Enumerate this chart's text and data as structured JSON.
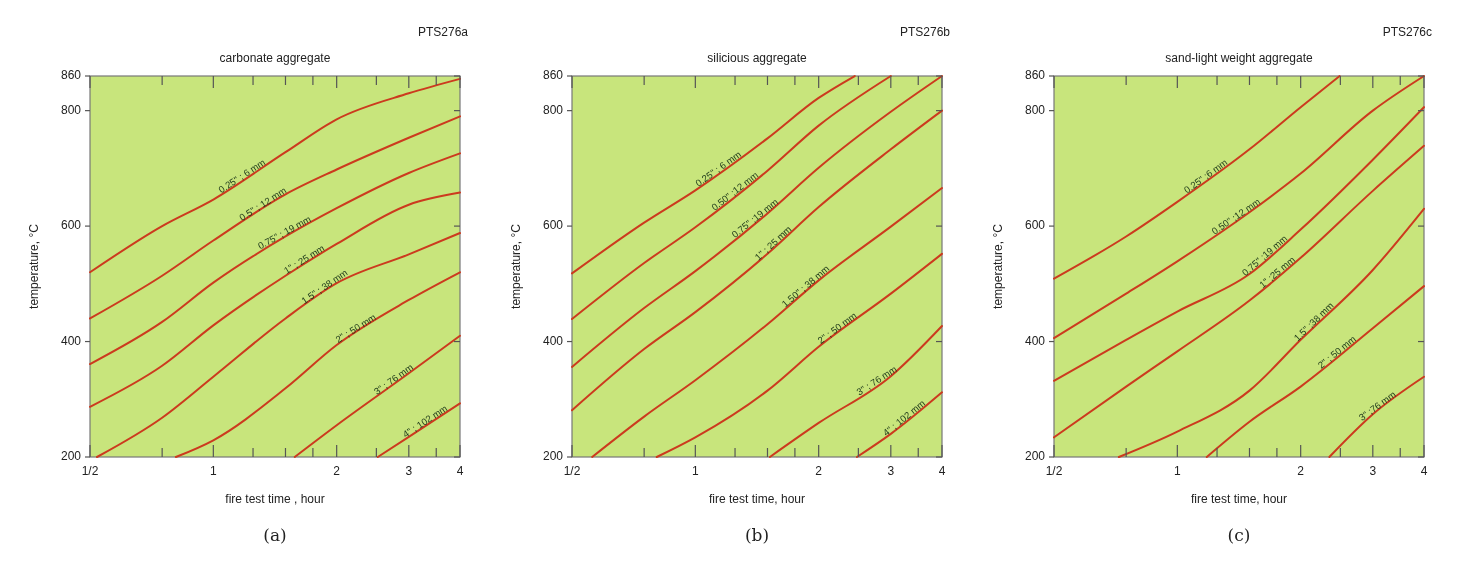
{
  "chart_data": [
    {
      "type": "line",
      "title": "carbonate aggregate",
      "xlabel": "fire test time ,  hour",
      "ylabel": "temperature, °C",
      "log": "x",
      "xlim": [
        0.5,
        4
      ],
      "ylim": [
        200,
        860
      ],
      "xticks": [
        {
          "value": 0.5,
          "label": "1/2"
        },
        {
          "value": 0.75,
          "label": null
        },
        1,
        {
          "value": 1.25,
          "label": null
        },
        {
          "value": 1.5,
          "label": null
        },
        {
          "value": 1.75,
          "label": null
        },
        2,
        {
          "value": 2.5,
          "label": null
        },
        3,
        {
          "value": 3.5,
          "label": null
        },
        4
      ],
      "yticks": [
        200,
        400,
        600,
        800,
        860
      ],
      "annotations": [
        "PTS276a",
        "(a)"
      ],
      "series": [
        {
          "name": "0.25\" ; 6 mm",
          "color": "#cc3a1e",
          "x": [
            0.5,
            0.75,
            1,
            1.5,
            2,
            3,
            4
          ],
          "values": [
            520,
            600,
            646,
            728,
            785,
            830,
            855
          ]
        },
        {
          "name": "0.5\" ; 12 mm",
          "color": "#cc3a1e",
          "x": [
            0.5,
            0.75,
            1,
            1.5,
            2,
            3,
            4
          ],
          "values": [
            440,
            514,
            575,
            655,
            698,
            753,
            790
          ]
        },
        {
          "name": "0.75\" ; 19 mm",
          "color": "#cc3a1e",
          "x": [
            0.5,
            0.75,
            1,
            1.5,
            2,
            3,
            4
          ],
          "values": [
            361,
            434,
            502,
            582,
            631,
            692,
            726
          ]
        },
        {
          "name": "1\" ; 25 mm",
          "color": "#cc3a1e",
          "x": [
            0.5,
            0.75,
            1,
            1.5,
            2,
            3,
            4
          ],
          "values": [
            287,
            358,
            428,
            514,
            569,
            637,
            658
          ]
        },
        {
          "name": "1.5\" ; 38 mm",
          "color": "#cc3a1e",
          "x": [
            0.52,
            0.75,
            1,
            1.5,
            2,
            3,
            4
          ],
          "values": [
            200,
            268,
            339,
            440,
            501,
            551,
            588
          ]
        },
        {
          "name": "2\" ; 50 mm",
          "color": "#cc3a1e",
          "x": [
            0.81,
            1,
            1.5,
            2,
            3,
            4
          ],
          "values": [
            200,
            229,
            319,
            394,
            472,
            520
          ]
        },
        {
          "name": "3\" ; 76 mm",
          "color": "#cc3a1e",
          "x": [
            1.58,
            2,
            3,
            4
          ],
          "values": [
            200,
            255,
            345,
            410
          ]
        },
        {
          "name": "4\" ; 102 mm",
          "color": "#cc3a1e",
          "x": [
            2.52,
            3,
            4
          ],
          "values": [
            200,
            235,
            293
          ]
        }
      ]
    },
    {
      "type": "line",
      "title": "silicious aggregate",
      "xlabel": "fire test time, hour",
      "ylabel": "temperature, °C",
      "log": "x",
      "xlim": [
        0.5,
        4
      ],
      "ylim": [
        200,
        860
      ],
      "xticks": [
        {
          "value": 0.5,
          "label": "1/2"
        },
        {
          "value": 0.75,
          "label": null
        },
        1,
        {
          "value": 1.25,
          "label": null
        },
        {
          "value": 1.5,
          "label": null
        },
        {
          "value": 1.75,
          "label": null
        },
        2,
        {
          "value": 2.5,
          "label": null
        },
        3,
        {
          "value": 3.5,
          "label": null
        },
        4
      ],
      "yticks": [
        200,
        400,
        600,
        800,
        860
      ],
      "annotations": [
        "PTS276b",
        "(b)"
      ],
      "series": [
        {
          "name": "0.25\" ; 6 mm",
          "color": "#cc3a1e",
          "x": [
            0.5,
            0.75,
            1,
            1.5,
            2,
            2.45
          ],
          "values": [
            518,
            606,
            662,
            752,
            822,
            860
          ]
        },
        {
          "name": "0.50\" ;12 mm",
          "color": "#cc3a1e",
          "x": [
            0.5,
            0.75,
            1,
            1.5,
            2,
            3
          ],
          "values": [
            439,
            536,
            598,
            696,
            774,
            860
          ]
        },
        {
          "name": "0.75\" ;19 mm",
          "color": "#cc3a1e",
          "x": [
            0.5,
            0.75,
            1,
            1.5,
            2,
            3,
            4
          ],
          "values": [
            356,
            458,
            522,
            622,
            701,
            798,
            860
          ]
        },
        {
          "name": "1\" ; 25 mm",
          "color": "#cc3a1e",
          "x": [
            0.5,
            0.75,
            1,
            1.5,
            2,
            3,
            4
          ],
          "values": [
            281,
            387,
            451,
            552,
            633,
            733,
            800
          ]
        },
        {
          "name": "1.50\" ; 38 mm",
          "color": "#cc3a1e",
          "x": [
            0.56,
            0.75,
            1,
            1.5,
            2,
            3,
            4
          ],
          "values": [
            200,
            270,
            333,
            430,
            506,
            599,
            666
          ]
        },
        {
          "name": "2\" ; 50 mm",
          "color": "#cc3a1e",
          "x": [
            0.805,
            1,
            1.5,
            2,
            3,
            4
          ],
          "values": [
            200,
            234,
            315,
            391,
            483,
            552
          ]
        },
        {
          "name": "3\" ; 76 mm",
          "color": "#cc3a1e",
          "x": [
            1.52,
            2,
            3,
            4
          ],
          "values": [
            200,
            259,
            340,
            427
          ]
        },
        {
          "name": "4\" ; 102 mm",
          "color": "#cc3a1e",
          "x": [
            2.48,
            3,
            4
          ],
          "values": [
            200,
            240,
            312
          ]
        }
      ]
    },
    {
      "type": "line",
      "title": "sand-light weight aggregate",
      "xlabel": "fire test time, hour",
      "ylabel": "temperature, °C",
      "log": "x",
      "xlim": [
        0.5,
        4
      ],
      "ylim": [
        200,
        860
      ],
      "xticks": [
        {
          "value": 0.5,
          "label": "1/2"
        },
        {
          "value": 0.75,
          "label": null
        },
        1,
        {
          "value": 1.25,
          "label": null
        },
        {
          "value": 1.5,
          "label": null
        },
        {
          "value": 1.75,
          "label": null
        },
        2,
        {
          "value": 2.5,
          "label": null
        },
        3,
        {
          "value": 3.5,
          "label": null
        },
        4
      ],
      "yticks": [
        200,
        400,
        600,
        800,
        860
      ],
      "annotations": [
        "PTS276c",
        "(c)"
      ],
      "series": [
        {
          "name": "0.25\" ;6 mm",
          "color": "#cc3a1e",
          "x": [
            0.5,
            0.75,
            1,
            1.5,
            2,
            2.49
          ],
          "values": [
            509,
            582,
            642,
            733,
            806,
            860
          ]
        },
        {
          "name": "0.50\" ;12 mm",
          "color": "#cc3a1e",
          "x": [
            0.5,
            0.75,
            1,
            1.5,
            2,
            3,
            4
          ],
          "values": [
            406,
            483,
            539,
            624,
            691,
            800,
            860
          ]
        },
        {
          "name": "0.75\" ;19 mm",
          "color": "#cc3a1e",
          "x": [
            0.5,
            0.75,
            1,
            1.5,
            2,
            3,
            4
          ],
          "values": [
            332,
            403,
            452,
            517,
            594,
            715,
            806
          ]
        },
        {
          "name": "1\" ;25 mm",
          "color": "#cc3a1e",
          "x": [
            0.5,
            0.75,
            1,
            1.5,
            2,
            3,
            4
          ],
          "values": [
            234,
            322,
            383,
            471,
            545,
            661,
            739
          ]
        },
        {
          "name": "1.5\" ;38 mm",
          "color": "#cc3a1e",
          "x": [
            0.72,
            1,
            1.5,
            2,
            3,
            4
          ],
          "values": [
            200,
            244,
            315,
            403,
            524,
            630
          ]
        },
        {
          "name": "2\" ; 50 mm",
          "color": "#cc3a1e",
          "x": [
            1.18,
            1.5,
            2,
            3,
            4
          ],
          "values": [
            200,
            261,
            322,
            423,
            496
          ]
        },
        {
          "name": "3\" ;76 mm",
          "color": "#cc3a1e",
          "x": [
            2.35,
            3,
            4
          ],
          "values": [
            200,
            274,
            339
          ]
        }
      ]
    }
  ]
}
